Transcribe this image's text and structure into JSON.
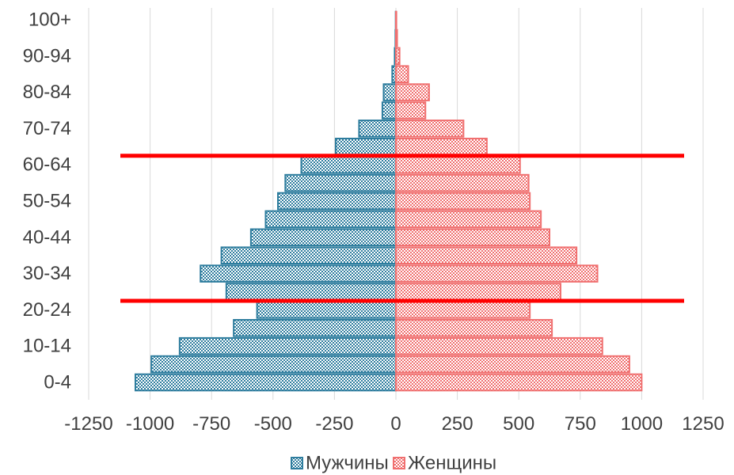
{
  "chart_data": {
    "type": "bar",
    "orientation": "horizontal",
    "grid": true,
    "legend_position": "bottom",
    "xlim": [
      -1250,
      1250
    ],
    "x_ticks": [
      "-1250",
      "-1000",
      "-750",
      "-500",
      "-250",
      "0",
      "250",
      "500",
      "750",
      "1000",
      "1250"
    ],
    "x_tick_values": [
      -1250,
      -1000,
      -750,
      -500,
      -250,
      0,
      250,
      500,
      750,
      1000,
      1250
    ],
    "categories": [
      "0-4",
      "5-9",
      "10-14",
      "15-19",
      "20-24",
      "25-29",
      "30-34",
      "35-39",
      "40-44",
      "45-49",
      "50-54",
      "55-59",
      "60-64",
      "65-69",
      "70-74",
      "75-79",
      "80-84",
      "85-89",
      "90-94",
      "95-99",
      "100+"
    ],
    "visible_category_labels": [
      "0-4",
      "10-14",
      "20-24",
      "30-34",
      "40-44",
      "50-54",
      "60-64",
      "70-74",
      "80-84",
      "90-94",
      "100+"
    ],
    "series": [
      {
        "name": "Мужчины",
        "color": "#2e7d9e",
        "values": [
          -1060,
          -995,
          -880,
          -660,
          -565,
          -690,
          -795,
          -710,
          -590,
          -530,
          -480,
          -450,
          -385,
          -245,
          -150,
          -55,
          -50,
          -15,
          -5,
          -2,
          -1
        ]
      },
      {
        "name": "Женщины",
        "color": "#f07070",
        "values": [
          1000,
          950,
          840,
          635,
          545,
          670,
          820,
          735,
          625,
          590,
          545,
          540,
          505,
          370,
          275,
          120,
          135,
          50,
          15,
          5,
          2
        ]
      }
    ],
    "annotations": [
      {
        "type": "horizontal-line",
        "color": "#ff0000",
        "between": [
          "60-64",
          "65-69"
        ]
      },
      {
        "type": "horizontal-line",
        "color": "#ff0000",
        "between": [
          "20-24",
          "25-29"
        ]
      }
    ]
  }
}
